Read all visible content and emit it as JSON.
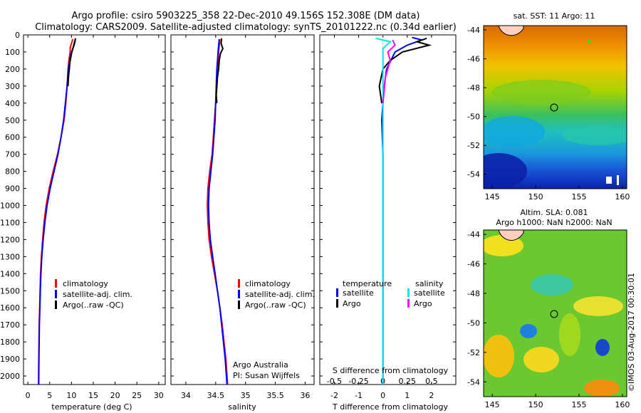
{
  "header": {
    "title_line1": "Argo profile: csiro 5903225_358 22-Dec-2010 49.156S 152.308E (DM data)",
    "title_line2": "Climatology: CARS2009. Satellite-adjusted climatology: synTS_20101222.nc (0.34d earlier)"
  },
  "colors": {
    "climatology": "#ff0000",
    "satellite": "#0000ff",
    "argo": "#000000",
    "sat_salinity": "#00e5ee",
    "argo_salinity": "#ff00ff"
  },
  "depth_axis": {
    "ticks": [
      0,
      100,
      200,
      300,
      400,
      500,
      600,
      700,
      800,
      900,
      1000,
      1100,
      1200,
      1300,
      1400,
      1500,
      1600,
      1700,
      1800,
      1900,
      2000
    ],
    "range": [
      0,
      2050
    ]
  },
  "chart_data": [
    {
      "id": "temperature",
      "type": "line",
      "xlabel": "temperature (deg C)",
      "xlim": [
        -1,
        31.5
      ],
      "xticks": [
        0,
        5,
        10,
        15,
        20,
        25,
        30
      ],
      "legend": [
        "climatology",
        "satellite-adj. clim.",
        "Argo(..raw -QC)"
      ],
      "series": [
        {
          "name": "climatology",
          "color": "#ff0000",
          "points": [
            [
              10.3,
              25
            ],
            [
              10.0,
              50
            ],
            [
              9.7,
              75
            ],
            [
              9.7,
              100
            ],
            [
              9.4,
              150
            ],
            [
              9.2,
              200
            ],
            [
              9.0,
              300
            ],
            [
              8.7,
              400
            ],
            [
              8.3,
              500
            ],
            [
              7.6,
              600
            ],
            [
              6.8,
              700
            ],
            [
              5.8,
              800
            ],
            [
              4.9,
              900
            ],
            [
              4.2,
              1000
            ],
            [
              3.7,
              1100
            ],
            [
              3.4,
              1200
            ],
            [
              3.1,
              1300
            ],
            [
              2.9,
              1400
            ],
            [
              2.8,
              1500
            ],
            [
              2.7,
              1600
            ],
            [
              2.6,
              1700
            ],
            [
              2.55,
              1800
            ],
            [
              2.5,
              1900
            ],
            [
              2.45,
              2050
            ]
          ]
        },
        {
          "name": "satellite-adj. clim.",
          "color": "#0000ff",
          "points": [
            [
              10.9,
              25
            ],
            [
              10.6,
              50
            ],
            [
              10.4,
              75
            ],
            [
              10.0,
              100
            ],
            [
              9.6,
              150
            ],
            [
              9.3,
              200
            ],
            [
              9.0,
              300
            ],
            [
              8.6,
              400
            ],
            [
              8.2,
              500
            ],
            [
              7.6,
              600
            ],
            [
              6.9,
              700
            ],
            [
              6.0,
              800
            ],
            [
              5.1,
              900
            ],
            [
              4.4,
              1000
            ],
            [
              3.9,
              1100
            ],
            [
              3.5,
              1200
            ],
            [
              3.2,
              1300
            ],
            [
              3.0,
              1400
            ],
            [
              2.85,
              1500
            ],
            [
              2.75,
              1600
            ],
            [
              2.65,
              1700
            ],
            [
              2.6,
              1800
            ],
            [
              2.55,
              1900
            ],
            [
              2.5,
              2050
            ]
          ]
        },
        {
          "name": "Argo(..raw -QC)",
          "color": "#000000",
          "points": [
            [
              10.9,
              20
            ],
            [
              10.8,
              40
            ],
            [
              10.6,
              60
            ],
            [
              10.3,
              80
            ],
            [
              10.0,
              110
            ],
            [
              9.7,
              150
            ],
            [
              9.5,
              200
            ],
            [
              9.3,
              250
            ],
            [
              9.2,
              300
            ]
          ]
        }
      ]
    },
    {
      "id": "salinity",
      "type": "line",
      "xlabel": "salinity",
      "xlim": [
        33.75,
        36.15
      ],
      "xticks": [
        34,
        34.5,
        35,
        35.5,
        36
      ],
      "legend": [
        "climatology",
        "satellite-adj. clim.",
        "Argo(..raw -QC)"
      ],
      "annotation": [
        "Argo Australia",
        "PI: Susan Wijffels"
      ],
      "series": [
        {
          "name": "climatology",
          "color": "#ff0000",
          "points": [
            [
              34.57,
              25
            ],
            [
              34.55,
              100
            ],
            [
              34.53,
              200
            ],
            [
              34.52,
              300
            ],
            [
              34.5,
              400
            ],
            [
              34.48,
              500
            ],
            [
              34.46,
              600
            ],
            [
              34.44,
              700
            ],
            [
              34.4,
              800
            ],
            [
              34.37,
              900
            ],
            [
              34.36,
              1000
            ],
            [
              34.37,
              1100
            ],
            [
              34.39,
              1200
            ],
            [
              34.43,
              1300
            ],
            [
              34.48,
              1400
            ],
            [
              34.53,
              1500
            ],
            [
              34.57,
              1600
            ],
            [
              34.61,
              1700
            ],
            [
              34.64,
              1800
            ],
            [
              34.67,
              1900
            ],
            [
              34.7,
              2050
            ]
          ]
        },
        {
          "name": "satellite-adj. clim.",
          "color": "#0000ff",
          "points": [
            [
              34.56,
              25
            ],
            [
              34.54,
              100
            ],
            [
              34.52,
              200
            ],
            [
              34.51,
              300
            ],
            [
              34.5,
              400
            ],
            [
              34.49,
              500
            ],
            [
              34.47,
              600
            ],
            [
              34.45,
              700
            ],
            [
              34.42,
              800
            ],
            [
              34.39,
              900
            ],
            [
              34.38,
              1000
            ],
            [
              34.39,
              1100
            ],
            [
              34.41,
              1200
            ],
            [
              34.45,
              1300
            ],
            [
              34.49,
              1400
            ],
            [
              34.53,
              1500
            ],
            [
              34.57,
              1600
            ],
            [
              34.6,
              1700
            ],
            [
              34.63,
              1800
            ],
            [
              34.66,
              1900
            ],
            [
              34.69,
              2050
            ]
          ]
        },
        {
          "name": "Argo(..raw -QC)",
          "color": "#000000",
          "points": [
            [
              34.6,
              20
            ],
            [
              34.59,
              50
            ],
            [
              34.62,
              80
            ],
            [
              34.58,
              110
            ],
            [
              34.56,
              150
            ],
            [
              34.55,
              200
            ],
            [
              34.53,
              250
            ],
            [
              34.52,
              300
            ],
            [
              34.51,
              350
            ],
            [
              34.52,
              400
            ]
          ]
        }
      ]
    },
    {
      "id": "difference",
      "type": "line",
      "xlabel": "T difference from climatology",
      "xlabel_top": "S difference from climatology",
      "xlim": [
        -2.6,
        3.0
      ],
      "xticks": [
        -2,
        -1,
        0,
        1,
        2
      ],
      "xticklabels": [
        "-2",
        "-1",
        "0",
        "1",
        "2"
      ],
      "s_xticklabels": [
        "-0.5",
        "-0.25",
        "0",
        "0.25",
        "0.5"
      ],
      "legend_headers": [
        "temperature",
        "salinity"
      ],
      "legend": [
        {
          "label": "satellite",
          "color": "#0000ff"
        },
        {
          "label": "Argo",
          "color": "#000000"
        },
        {
          "label": "satellite",
          "color": "#00e5ee"
        },
        {
          "label": "Argo",
          "color": "#ff00ff"
        }
      ],
      "series": [
        {
          "name": "T satellite",
          "color": "#0000ff",
          "points": [
            [
              1.2,
              15
            ],
            [
              1.6,
              30
            ],
            [
              1.0,
              60
            ],
            [
              0.5,
              100
            ],
            [
              0.15,
              200
            ],
            [
              0.05,
              300
            ],
            [
              0.0,
              400
            ],
            [
              -0.05,
              500
            ],
            [
              0.0,
              700
            ],
            [
              0.0,
              1000
            ],
            [
              0.0,
              1500
            ],
            [
              0.0,
              2050
            ]
          ]
        },
        {
          "name": "T Argo",
          "color": "#000000",
          "points": [
            [
              1.8,
              20
            ],
            [
              1.4,
              40
            ],
            [
              1.9,
              60
            ],
            [
              0.8,
              100
            ],
            [
              0.3,
              150
            ],
            [
              0.0,
              200
            ],
            [
              -0.15,
              300
            ],
            [
              -0.05,
              400
            ]
          ]
        },
        {
          "name": "S satellite",
          "color": "#00e5ee",
          "points": [
            [
              -0.3,
              20
            ],
            [
              0.3,
              40
            ],
            [
              0.0,
              80
            ],
            [
              0.0,
              200
            ],
            [
              0.0,
              500
            ],
            [
              0.0,
              1000
            ],
            [
              0.0,
              1500
            ],
            [
              0.0,
              2050
            ]
          ]
        },
        {
          "name": "S Argo",
          "color": "#ff00ff",
          "points": [
            [
              0.4,
              30
            ],
            [
              0.5,
              60
            ],
            [
              0.2,
              100
            ],
            [
              0.3,
              150
            ],
            [
              0.1,
              250
            ],
            [
              0.0,
              400
            ]
          ]
        }
      ]
    }
  ],
  "maps": {
    "sst": {
      "title": "sat. SST: 11 Argo: 11",
      "xticks": [
        "145",
        "150",
        "155",
        "160"
      ],
      "yticks": [
        "-44",
        "-46",
        "-48",
        "-50",
        "-52",
        "-54"
      ]
    },
    "sla": {
      "title_line1": "Altim. SLA: 0.081",
      "title_line2": "Argo h1000: NaN h2000: NaN",
      "xticks": [
        "145",
        "150",
        "155",
        "160"
      ],
      "yticks": [
        "-44",
        "-46",
        "-48",
        "-50",
        "-52",
        "-54"
      ]
    }
  },
  "footer": {
    "credit": "©IMOS 03-Aug-2017 00:30:01"
  }
}
